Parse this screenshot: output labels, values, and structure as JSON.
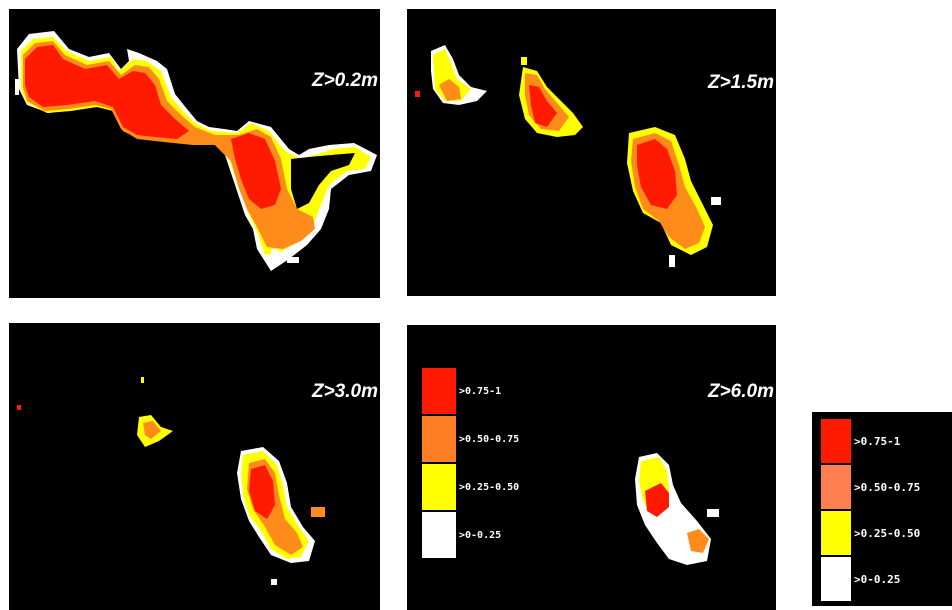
{
  "panels": [
    {
      "label": "Z>0.2m"
    },
    {
      "label": "Z>1.5m"
    },
    {
      "label": "Z>3.0m"
    },
    {
      "label": "Z>6.0m"
    }
  ],
  "legend_inset": {
    "items": [
      {
        "label": ">0.75-1",
        "color": "#ff1a00"
      },
      {
        "label": ">0.50-0.75",
        "color": "#ff7f24"
      },
      {
        "label": ">0.25-0.50",
        "color": "#ffff00"
      },
      {
        "label": ">0-0.25",
        "color": "#ffffff"
      }
    ]
  },
  "legend_side": {
    "items": [
      {
        "label": ">0.75-1",
        "color": "#ff1a00"
      },
      {
        "label": ">0.50-0.75",
        "color": "#ff7f50"
      },
      {
        "label": ">0.25-0.50",
        "color": "#ffff00"
      },
      {
        "label": ">0-0.25",
        "color": "#ffffff"
      }
    ]
  },
  "colors": {
    "background": "#000000",
    "high": "#ff1a00",
    "mid_high": "#ff8c1a",
    "mid_low": "#ffff00",
    "low": "#ffffff"
  }
}
